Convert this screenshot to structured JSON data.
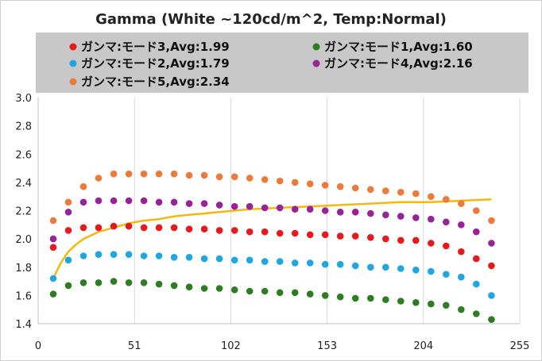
{
  "chart_data": {
    "type": "scatter",
    "title": "Gamma (White ~120cd/m^2, Temp:Normal)",
    "xlabel": "",
    "ylabel": "",
    "xlim": [
      0,
      255
    ],
    "ylim": [
      1.4,
      3.0
    ],
    "x_ticks": [
      0,
      51,
      102,
      153,
      204,
      255
    ],
    "y_ticks": [
      "1.4",
      "1.6",
      "1.8",
      "2.0",
      "2.2",
      "2.4",
      "2.6",
      "2.8",
      "3.0"
    ],
    "grid": "vertical",
    "legend_position": "top",
    "x": [
      8,
      16,
      24,
      32,
      40,
      48,
      56,
      64,
      72,
      80,
      88,
      96,
      104,
      112,
      120,
      128,
      136,
      144,
      152,
      160,
      168,
      176,
      184,
      192,
      200,
      208,
      216,
      224,
      232,
      240
    ],
    "series": [
      {
        "name": "ガンマ:モード3,Avg:1.99",
        "color": "#e8181c",
        "values": [
          1.94,
          2.06,
          2.08,
          2.08,
          2.09,
          2.09,
          2.08,
          2.08,
          2.08,
          2.07,
          2.07,
          2.06,
          2.06,
          2.05,
          2.05,
          2.04,
          2.04,
          2.03,
          2.03,
          2.02,
          2.02,
          2.01,
          2.0,
          1.99,
          1.99,
          1.97,
          1.95,
          1.91,
          1.86,
          1.81
        ]
      },
      {
        "name": "ガンマ:モード1,Avg:1.60",
        "color": "#2e7d22",
        "values": [
          1.61,
          1.67,
          1.69,
          1.69,
          1.7,
          1.69,
          1.69,
          1.68,
          1.67,
          1.66,
          1.65,
          1.65,
          1.64,
          1.63,
          1.63,
          1.62,
          1.62,
          1.61,
          1.6,
          1.59,
          1.58,
          1.58,
          1.57,
          1.56,
          1.55,
          1.54,
          1.53,
          1.5,
          1.47,
          1.43
        ]
      },
      {
        "name": "ガンマ:モード2,Avg:1.79",
        "color": "#1ea7e1",
        "values": [
          1.72,
          1.85,
          1.88,
          1.89,
          1.89,
          1.89,
          1.88,
          1.88,
          1.87,
          1.87,
          1.86,
          1.86,
          1.85,
          1.85,
          1.84,
          1.84,
          1.83,
          1.83,
          1.82,
          1.82,
          1.81,
          1.8,
          1.8,
          1.79,
          1.78,
          1.77,
          1.75,
          1.73,
          1.68,
          1.6
        ]
      },
      {
        "name": "ガンマ:モード4,Avg:2.16",
        "color": "#992299",
        "values": [
          2.0,
          2.19,
          2.26,
          2.27,
          2.27,
          2.27,
          2.27,
          2.26,
          2.26,
          2.25,
          2.25,
          2.24,
          2.23,
          2.23,
          2.22,
          2.22,
          2.21,
          2.21,
          2.2,
          2.19,
          2.19,
          2.18,
          2.17,
          2.16,
          2.15,
          2.14,
          2.12,
          2.1,
          2.05,
          1.97
        ]
      },
      {
        "name": "ガンマ:モード5,Avg:2.34",
        "color": "#ee7a3a",
        "values": [
          2.13,
          2.26,
          2.37,
          2.43,
          2.46,
          2.46,
          2.46,
          2.46,
          2.46,
          2.45,
          2.45,
          2.44,
          2.44,
          2.43,
          2.42,
          2.41,
          2.4,
          2.39,
          2.38,
          2.37,
          2.36,
          2.35,
          2.34,
          2.33,
          2.32,
          2.3,
          2.28,
          2.25,
          2.2,
          2.13
        ]
      }
    ],
    "reference_curve": {
      "color": "#f5b80c",
      "x": [
        8,
        12,
        16,
        20,
        24,
        32,
        40,
        48,
        56,
        64,
        72,
        80,
        96,
        112,
        128,
        144,
        160,
        176,
        192,
        208,
        224,
        240
      ],
      "values": [
        1.72,
        1.83,
        1.91,
        1.96,
        2.0,
        2.05,
        2.08,
        2.11,
        2.13,
        2.14,
        2.16,
        2.17,
        2.19,
        2.21,
        2.22,
        2.23,
        2.24,
        2.25,
        2.26,
        2.26,
        2.27,
        2.28
      ]
    }
  },
  "legend": {
    "row1_left": "ガンマ:モード3,Avg:1.99",
    "row1_right": "ガンマ:モード1,Avg:1.60",
    "row2_left": "ガンマ:モード2,Avg:1.79",
    "row2_right": "ガンマ:モード4,Avg:2.16",
    "row3_left": "ガンマ:モード5,Avg:2.34"
  },
  "colors": {
    "legend_bg": "#c8c8c8",
    "grid": "#d9d9d9",
    "axis": "#bfbfbf"
  }
}
